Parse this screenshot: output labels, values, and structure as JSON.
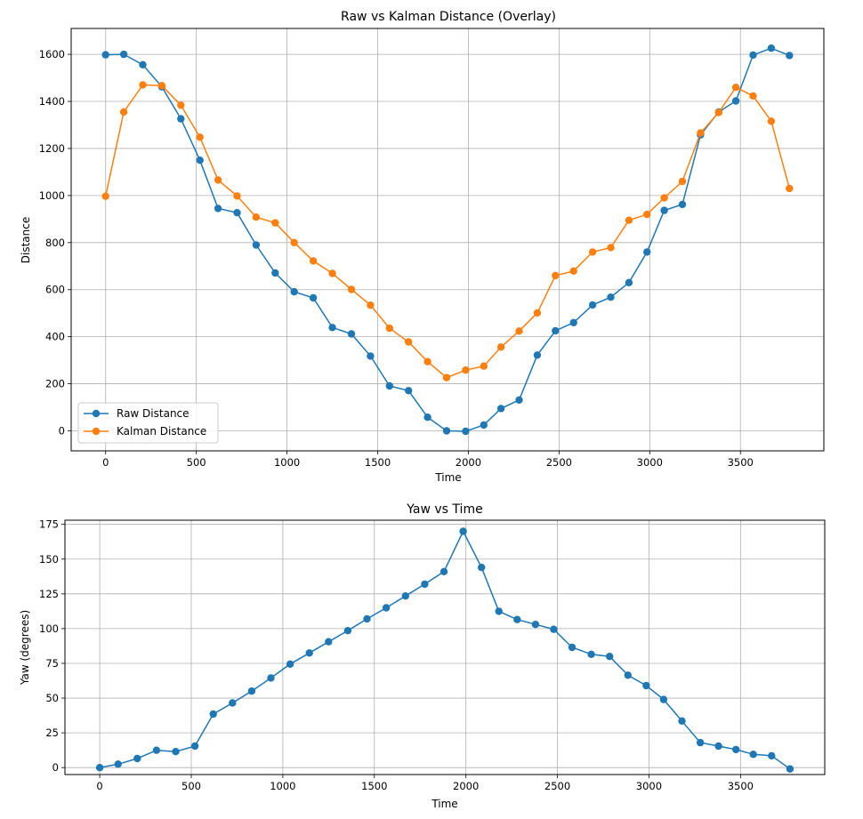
{
  "colors": {
    "raw": "#1f77b4",
    "kalman": "#ff7f0e",
    "yaw": "#1f77b4",
    "grid": "#b0b0b0"
  },
  "chart_data": [
    {
      "type": "line",
      "title": "Raw vs Kalman Distance (Overlay)",
      "xlabel": "Time",
      "ylabel": "Distance",
      "xlim": [
        -190,
        3960
      ],
      "ylim": [
        -85,
        1710
      ],
      "xticks": [
        0,
        500,
        1000,
        1500,
        2000,
        2500,
        3000,
        3500
      ],
      "yticks": [
        0,
        200,
        400,
        600,
        800,
        1000,
        1200,
        1400,
        1600
      ],
      "grid": true,
      "legend": "lower-left",
      "x": [
        0,
        100,
        205,
        310,
        415,
        520,
        620,
        725,
        830,
        935,
        1040,
        1145,
        1250,
        1355,
        1460,
        1565,
        1670,
        1775,
        1880,
        1985,
        2085,
        2180,
        2280,
        2380,
        2480,
        2580,
        2685,
        2785,
        2885,
        2985,
        3080,
        3180,
        3280,
        3380,
        3475,
        3570,
        3670,
        3770
      ],
      "series": [
        {
          "name": "Raw Distance",
          "values": [
            1598,
            1600,
            1556,
            1462,
            1326,
            1150,
            945,
            927,
            790,
            671,
            591,
            565,
            439,
            412,
            318,
            191,
            171,
            58,
            0,
            -2,
            25,
            95,
            131,
            322,
            425,
            460,
            535,
            568,
            630,
            760,
            937,
            962,
            1258,
            1355,
            1402,
            1597,
            1626,
            1595
          ]
        },
        {
          "name": "Kalman Distance",
          "values": [
            997,
            1355,
            1470,
            1467,
            1384,
            1248,
            1066,
            998,
            908,
            884,
            800,
            722,
            669,
            601,
            534,
            436,
            378,
            294,
            226,
            258,
            275,
            356,
            424,
            501,
            660,
            679,
            760,
            779,
            895,
            920,
            990,
            1060,
            1266,
            1353,
            1460,
            1423,
            1316,
            1030
          ]
        }
      ]
    },
    {
      "type": "line",
      "title": "Yaw vs Time",
      "xlabel": "Time",
      "ylabel": "Yaw (degrees)",
      "xlim": [
        -190,
        3960
      ],
      "ylim": [
        -5,
        178
      ],
      "xticks": [
        0,
        500,
        1000,
        1500,
        2000,
        2500,
        3000,
        3500
      ],
      "yticks": [
        0,
        25,
        50,
        75,
        100,
        125,
        150,
        175
      ],
      "grid": true,
      "x": [
        0,
        100,
        205,
        310,
        415,
        520,
        620,
        725,
        830,
        935,
        1040,
        1145,
        1250,
        1355,
        1460,
        1565,
        1670,
        1775,
        1880,
        1985,
        2085,
        2180,
        2280,
        2380,
        2480,
        2580,
        2685,
        2785,
        2885,
        2985,
        3080,
        3180,
        3280,
        3380,
        3475,
        3570,
        3670,
        3770
      ],
      "series": [
        {
          "values": [
            0,
            2.5,
            6.5,
            12.5,
            11.5,
            15.5,
            38.5,
            46.5,
            55,
            64.5,
            74.5,
            82.5,
            90.5,
            98.5,
            107,
            115,
            123.5,
            132,
            141,
            170,
            144,
            112.5,
            106.5,
            103,
            99.5,
            86.5,
            81.5,
            80,
            66.5,
            59,
            49,
            33.5,
            18,
            15.5,
            13,
            9.5,
            8.5,
            -1
          ]
        }
      ]
    }
  ]
}
